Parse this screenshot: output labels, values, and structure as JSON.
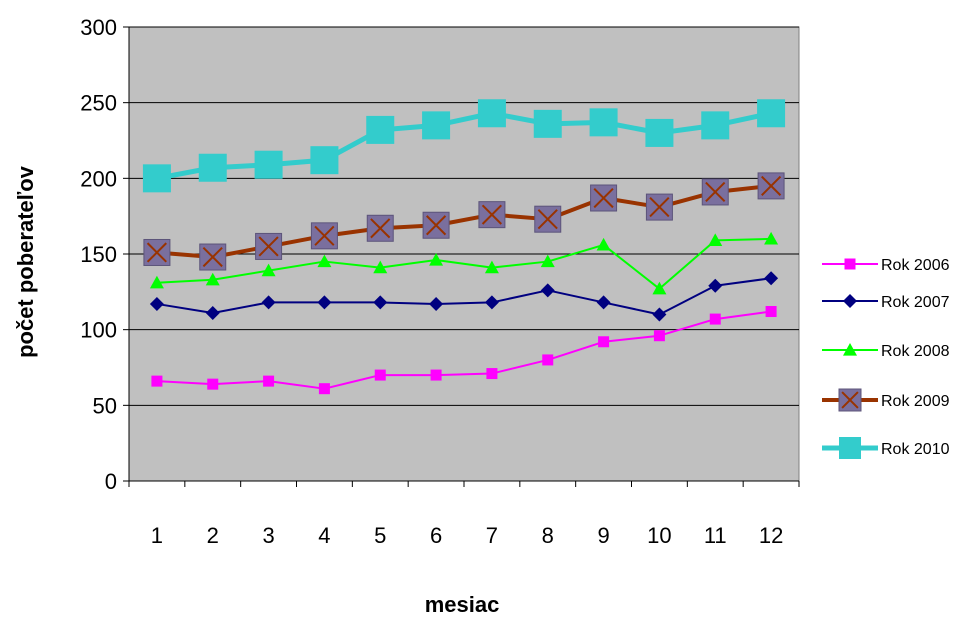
{
  "chart_data": {
    "type": "line",
    "title": "",
    "xlabel": "mesiac",
    "ylabel": "počet poberateľov",
    "ylim": [
      0,
      300
    ],
    "yticks": [
      0,
      50,
      100,
      150,
      200,
      250,
      300
    ],
    "grid": true,
    "legend_position": "right",
    "plot_background": "#c0c0c0",
    "categories": [
      "1",
      "2",
      "3",
      "4",
      "5",
      "6",
      "7",
      "8",
      "9",
      "10",
      "11",
      "12"
    ],
    "series": [
      {
        "name": "Rok 2006",
        "color": "#ff00ff",
        "marker": "square",
        "values": [
          66,
          64,
          66,
          61,
          70,
          70,
          71,
          80,
          92,
          96,
          107,
          112
        ]
      },
      {
        "name": "Rok 2007",
        "color": "#000080",
        "marker": "diamond",
        "values": [
          117,
          111,
          118,
          118,
          118,
          117,
          118,
          126,
          118,
          110,
          129,
          134
        ]
      },
      {
        "name": "Rok 2008",
        "color": "#00ff00",
        "marker": "triangle",
        "values": [
          131,
          133,
          139,
          145,
          141,
          146,
          141,
          145,
          156,
          127,
          159,
          160
        ]
      },
      {
        "name": "Rok 2009",
        "color": "#993300",
        "marker": "x-box",
        "values": [
          151,
          148,
          155,
          162,
          167,
          169,
          176,
          173,
          187,
          181,
          191,
          195
        ]
      },
      {
        "name": "Rok 2010",
        "color": "#33cccc",
        "marker": "big-square",
        "values": [
          200,
          207,
          209,
          212,
          232,
          235,
          243,
          236,
          237,
          230,
          235,
          243
        ]
      }
    ]
  }
}
